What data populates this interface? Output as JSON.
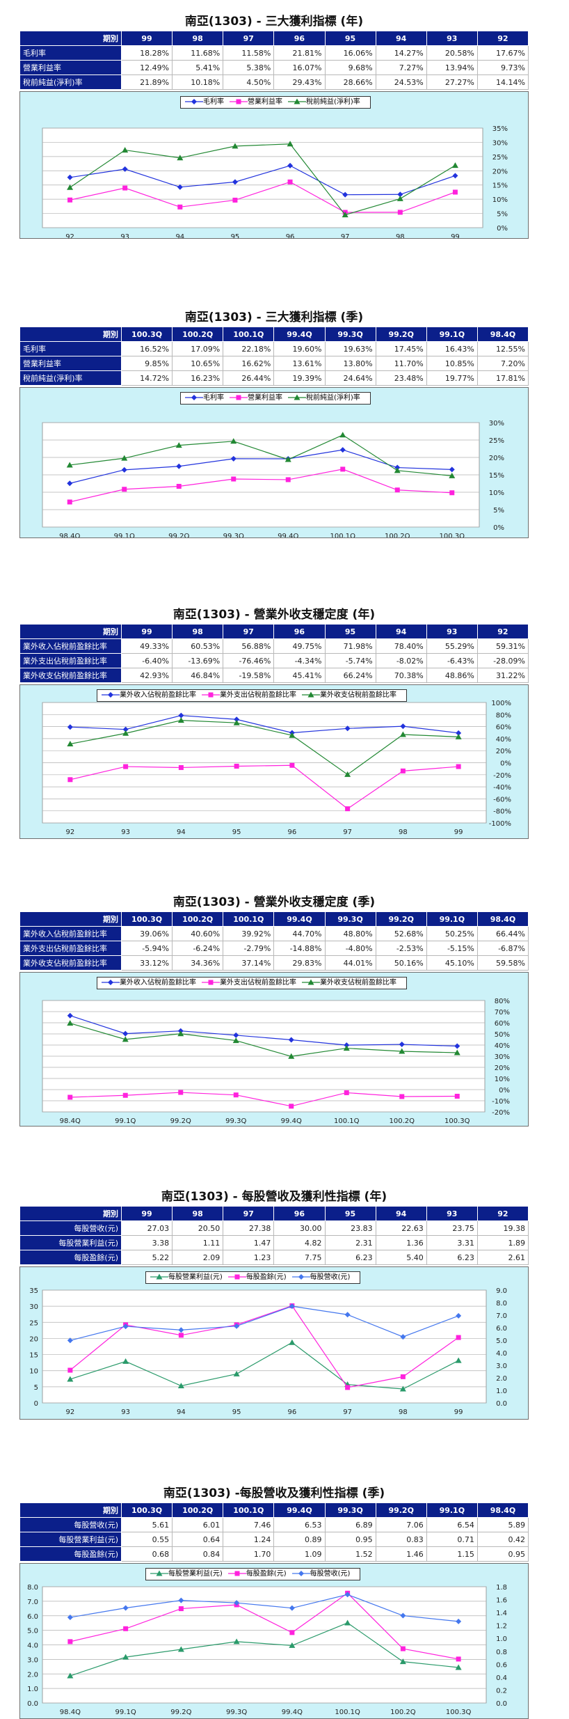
{
  "sections": [
    {
      "title": "南亞(1303) - 三大獲利指標 (年)",
      "header_label": "期別",
      "columns": [
        "99",
        "98",
        "97",
        "96",
        "95",
        "94",
        "93",
        "92"
      ],
      "rows": [
        {
          "label": "毛利率",
          "cells": [
            "18.28%",
            "11.68%",
            "11.58%",
            "21.81%",
            "16.06%",
            "14.27%",
            "20.58%",
            "17.67%"
          ]
        },
        {
          "label": "營業利益率",
          "cells": [
            "12.49%",
            "5.41%",
            "5.38%",
            "16.07%",
            "9.68%",
            "7.27%",
            "13.94%",
            "9.73%"
          ]
        },
        {
          "label": "稅前純益(淨利)率",
          "cells": [
            "21.89%",
            "10.18%",
            "4.50%",
            "29.43%",
            "28.66%",
            "24.53%",
            "27.27%",
            "14.14%"
          ]
        }
      ]
    },
    {
      "title": "南亞(1303) - 三大獲利指標 (季)",
      "header_label": "期別",
      "columns": [
        "100.3Q",
        "100.2Q",
        "100.1Q",
        "99.4Q",
        "99.3Q",
        "99.2Q",
        "99.1Q",
        "98.4Q"
      ],
      "rows": [
        {
          "label": "毛利率",
          "cells": [
            "16.52%",
            "17.09%",
            "22.18%",
            "19.60%",
            "19.63%",
            "17.45%",
            "16.43%",
            "12.55%"
          ]
        },
        {
          "label": "營業利益率",
          "cells": [
            "9.85%",
            "10.65%",
            "16.62%",
            "13.61%",
            "13.80%",
            "11.70%",
            "10.85%",
            "7.20%"
          ]
        },
        {
          "label": "稅前純益(淨利)率",
          "cells": [
            "14.72%",
            "16.23%",
            "26.44%",
            "19.39%",
            "24.64%",
            "23.48%",
            "19.77%",
            "17.81%"
          ]
        }
      ]
    },
    {
      "title": "南亞(1303) - 營業外收支穩定度 (年)",
      "header_label": "期別",
      "columns": [
        "99",
        "98",
        "97",
        "96",
        "95",
        "94",
        "93",
        "92"
      ],
      "rows": [
        {
          "label": "業外收入佔稅前盈餘比率",
          "cells": [
            "49.33%",
            "60.53%",
            "56.88%",
            "49.75%",
            "71.98%",
            "78.40%",
            "55.29%",
            "59.31%"
          ]
        },
        {
          "label": "業外支出佔稅前盈餘比率",
          "cells": [
            "-6.40%",
            "-13.69%",
            "-76.46%",
            "-4.34%",
            "-5.74%",
            "-8.02%",
            "-6.43%",
            "-28.09%"
          ]
        },
        {
          "label": "業外收支佔稅前盈餘比率",
          "cells": [
            "42.93%",
            "46.84%",
            "-19.58%",
            "45.41%",
            "66.24%",
            "70.38%",
            "48.86%",
            "31.22%"
          ]
        }
      ]
    },
    {
      "title": "南亞(1303) - 營業外收支穩定度 (季)",
      "header_label": "期別",
      "columns": [
        "100.3Q",
        "100.2Q",
        "100.1Q",
        "99.4Q",
        "99.3Q",
        "99.2Q",
        "99.1Q",
        "98.4Q"
      ],
      "rows": [
        {
          "label": "業外收入佔稅前盈餘比率",
          "cells": [
            "39.06%",
            "40.60%",
            "39.92%",
            "44.70%",
            "48.80%",
            "52.68%",
            "50.25%",
            "66.44%"
          ]
        },
        {
          "label": "業外支出佔稅前盈餘比率",
          "cells": [
            "-5.94%",
            "-6.24%",
            "-2.79%",
            "-14.88%",
            "-4.80%",
            "-2.53%",
            "-5.15%",
            "-6.87%"
          ]
        },
        {
          "label": "業外收支佔稅前盈餘比率",
          "cells": [
            "33.12%",
            "34.36%",
            "37.14%",
            "29.83%",
            "44.01%",
            "50.16%",
            "45.10%",
            "59.58%"
          ]
        }
      ]
    },
    {
      "title": "南亞(1303) - 每股營收及獲利性指標 (年)",
      "header_label": "期別",
      "columns": [
        "99",
        "98",
        "97",
        "96",
        "95",
        "94",
        "93",
        "92"
      ],
      "rows": [
        {
          "label": "每股營收(元)",
          "cells": [
            "27.03",
            "20.50",
            "27.38",
            "30.00",
            "23.83",
            "22.63",
            "23.75",
            "19.38"
          ]
        },
        {
          "label": "每股營業利益(元)",
          "cells": [
            "3.38",
            "1.11",
            "1.47",
            "4.82",
            "2.31",
            "1.36",
            "3.31",
            "1.89"
          ]
        },
        {
          "label": "每股盈餘(元)",
          "cells": [
            "5.22",
            "2.09",
            "1.23",
            "7.75",
            "6.23",
            "5.40",
            "6.23",
            "2.61"
          ]
        }
      ]
    },
    {
      "title": "南亞(1303) -每股營收及獲利性指標 (季)",
      "header_label": "期別",
      "columns": [
        "100.3Q",
        "100.2Q",
        "100.1Q",
        "99.4Q",
        "99.3Q",
        "99.2Q",
        "99.1Q",
        "98.4Q"
      ],
      "rows": [
        {
          "label": "每股營收(元)",
          "cells": [
            "5.61",
            "6.01",
            "7.46",
            "6.53",
            "6.89",
            "7.06",
            "6.54",
            "5.89"
          ]
        },
        {
          "label": "每股營業利益(元)",
          "cells": [
            "0.55",
            "0.64",
            "1.24",
            "0.89",
            "0.95",
            "0.83",
            "0.71",
            "0.42"
          ]
        },
        {
          "label": "每股盈餘(元)",
          "cells": [
            "0.68",
            "0.84",
            "1.70",
            "1.09",
            "1.52",
            "1.46",
            "1.15",
            "0.95"
          ]
        }
      ]
    }
  ],
  "chart_data": [
    {
      "type": "line",
      "x": [
        "92",
        "93",
        "94",
        "95",
        "96",
        "97",
        "98",
        "99"
      ],
      "ylim": [
        0,
        35
      ],
      "yticks": [
        "0%",
        "5%",
        "10%",
        "15%",
        "20%",
        "25%",
        "30%",
        "35%"
      ],
      "series": [
        {
          "name": "毛利率",
          "color": "#2233dd",
          "marker": "diamond",
          "values": [
            17.67,
            20.58,
            14.27,
            16.06,
            21.81,
            11.58,
            11.68,
            18.28
          ]
        },
        {
          "name": "營業利益率",
          "color": "#ff22dd",
          "marker": "square",
          "values": [
            9.73,
            13.94,
            7.27,
            9.68,
            16.07,
            5.38,
            5.41,
            12.49
          ]
        },
        {
          "name": "稅前純益(淨利)率",
          "color": "#228833",
          "marker": "triangle",
          "values": [
            14.14,
            27.27,
            24.53,
            28.66,
            29.43,
            4.5,
            10.18,
            21.89
          ]
        }
      ],
      "legend_position": "top-center"
    },
    {
      "type": "line",
      "x": [
        "98.4Q",
        "99.1Q",
        "99.2Q",
        "99.3Q",
        "99.4Q",
        "100.1Q",
        "100.2Q",
        "100.3Q"
      ],
      "ylim": [
        0,
        30
      ],
      "yticks": [
        "0%",
        "5%",
        "10%",
        "15%",
        "20%",
        "25%",
        "30%"
      ],
      "series": [
        {
          "name": "毛利率",
          "color": "#2233dd",
          "marker": "diamond",
          "values": [
            12.55,
            16.43,
            17.45,
            19.63,
            19.6,
            22.18,
            17.09,
            16.52
          ]
        },
        {
          "name": "營業利益率",
          "color": "#ff22dd",
          "marker": "square",
          "values": [
            7.2,
            10.85,
            11.7,
            13.8,
            13.61,
            16.62,
            10.65,
            9.85
          ]
        },
        {
          "name": "稅前純益(淨利)率",
          "color": "#228833",
          "marker": "triangle",
          "values": [
            17.81,
            19.77,
            23.48,
            24.64,
            19.39,
            26.44,
            16.23,
            14.72
          ]
        }
      ],
      "legend_position": "top-center"
    },
    {
      "type": "line",
      "x": [
        "92",
        "93",
        "94",
        "95",
        "96",
        "97",
        "98",
        "99"
      ],
      "ylim": [
        -100,
        100
      ],
      "yticks": [
        "-100%",
        "-80%",
        "-60%",
        "-40%",
        "-20%",
        "0%",
        "20%",
        "40%",
        "60%",
        "80%",
        "100%"
      ],
      "series": [
        {
          "name": "業外收入佔稅前盈餘比率",
          "color": "#2233dd",
          "marker": "diamond",
          "values": [
            59.31,
            55.29,
            78.4,
            71.98,
            49.75,
            56.88,
            60.53,
            49.33
          ]
        },
        {
          "name": "業外支出佔稅前盈餘比率",
          "color": "#ff22dd",
          "marker": "square",
          "values": [
            -28.09,
            -6.43,
            -8.02,
            -5.74,
            -4.34,
            -76.46,
            -13.69,
            -6.4
          ]
        },
        {
          "name": "業外收支佔稅前盈餘比率",
          "color": "#228833",
          "marker": "triangle",
          "values": [
            31.22,
            48.86,
            70.38,
            66.24,
            45.41,
            -19.58,
            46.84,
            42.93
          ]
        }
      ],
      "legend_position": "top-center"
    },
    {
      "type": "line",
      "x": [
        "98.4Q",
        "99.1Q",
        "99.2Q",
        "99.3Q",
        "99.4Q",
        "100.1Q",
        "100.2Q",
        "100.3Q"
      ],
      "ylim": [
        -20,
        80
      ],
      "yticks": [
        "-20%",
        "-10%",
        "0%",
        "10%",
        "20%",
        "30%",
        "40%",
        "50%",
        "60%",
        "70%",
        "80%"
      ],
      "series": [
        {
          "name": "業外收入佔稅前盈餘比率",
          "color": "#2233dd",
          "marker": "diamond",
          "values": [
            66.44,
            50.25,
            52.68,
            48.8,
            44.7,
            39.92,
            40.6,
            39.06
          ]
        },
        {
          "name": "業外支出佔稅前盈餘比率",
          "color": "#ff22dd",
          "marker": "square",
          "values": [
            -6.87,
            -5.15,
            -2.53,
            -4.8,
            -14.88,
            -2.79,
            -6.24,
            -5.94
          ]
        },
        {
          "name": "業外收支佔稅前盈餘比率",
          "color": "#228833",
          "marker": "triangle",
          "values": [
            59.58,
            45.1,
            50.16,
            44.01,
            29.83,
            37.14,
            34.36,
            33.12
          ]
        }
      ],
      "legend_position": "top-center"
    },
    {
      "type": "line",
      "x": [
        "92",
        "93",
        "94",
        "95",
        "96",
        "97",
        "98",
        "99"
      ],
      "ylim": [
        0,
        35
      ],
      "yticks": [
        "0",
        "5",
        "10",
        "15",
        "20",
        "25",
        "30",
        "35"
      ],
      "y2lim": [
        0,
        9
      ],
      "y2ticks": [
        "0.0",
        "1.0",
        "2.0",
        "3.0",
        "4.0",
        "5.0",
        "6.0",
        "7.0",
        "8.0",
        "9.0"
      ],
      "series": [
        {
          "name": "每股營業利益(元)",
          "color": "#2a9a6a",
          "marker": "triangle",
          "axis": "right",
          "values": [
            1.89,
            3.31,
            1.36,
            2.31,
            4.82,
            1.47,
            1.11,
            3.38
          ]
        },
        {
          "name": "每股盈餘(元)",
          "color": "#ff22dd",
          "marker": "square",
          "axis": "right",
          "values": [
            2.61,
            6.23,
            5.4,
            6.23,
            7.75,
            1.23,
            2.09,
            5.22
          ]
        },
        {
          "name": "每股營收(元)",
          "color": "#4477ee",
          "marker": "diamond",
          "axis": "left",
          "values": [
            19.38,
            23.75,
            22.63,
            23.83,
            30.0,
            27.38,
            20.5,
            27.03
          ]
        }
      ],
      "legend_position": "top-center"
    },
    {
      "type": "line",
      "x": [
        "98.4Q",
        "99.1Q",
        "99.2Q",
        "99.3Q",
        "99.4Q",
        "100.1Q",
        "100.2Q",
        "100.3Q"
      ],
      "ylim": [
        0,
        8
      ],
      "yticks": [
        "0.0",
        "1.0",
        "2.0",
        "3.0",
        "4.0",
        "5.0",
        "6.0",
        "7.0",
        "8.0"
      ],
      "y2lim": [
        0,
        1.8
      ],
      "y2ticks": [
        "0.0",
        "0.2",
        "0.4",
        "0.6",
        "0.8",
        "1.0",
        "1.2",
        "1.4",
        "1.6",
        "1.8"
      ],
      "series": [
        {
          "name": "每股營業利益(元)",
          "color": "#2a9a6a",
          "marker": "triangle",
          "axis": "right",
          "values": [
            0.42,
            0.71,
            0.83,
            0.95,
            0.89,
            1.24,
            0.64,
            0.55
          ]
        },
        {
          "name": "每股盈餘(元)",
          "color": "#ff22dd",
          "marker": "square",
          "axis": "right",
          "values": [
            0.95,
            1.15,
            1.46,
            1.52,
            1.09,
            1.7,
            0.84,
            0.68
          ]
        },
        {
          "name": "每股營收(元)",
          "color": "#4477ee",
          "marker": "diamond",
          "axis": "left",
          "values": [
            5.89,
            6.54,
            7.06,
            6.89,
            6.53,
            7.46,
            6.01,
            5.61
          ]
        }
      ],
      "legend_position": "top-center"
    }
  ]
}
